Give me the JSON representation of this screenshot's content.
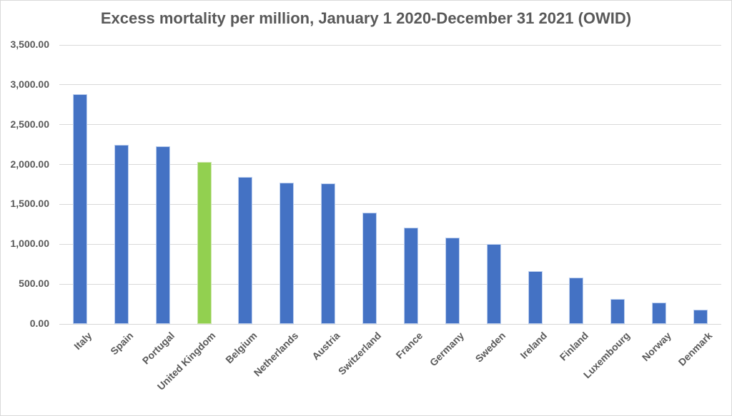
{
  "chart_data": {
    "type": "bar",
    "title": "Excess mortality per million, January 1 2020-December 31 2021 (OWID)",
    "categories": [
      "Italy",
      "Spain",
      "Portugal",
      "United Kingdom",
      "Belgium",
      "Netherlands",
      "Austria",
      "Switzerland",
      "France",
      "Germany",
      "Sweden",
      "Ireland",
      "Finland",
      "Luxembourg",
      "Norway",
      "Denmark"
    ],
    "values": [
      2880,
      2250,
      2230,
      2030,
      1840,
      1770,
      1760,
      1400,
      1210,
      1080,
      1000,
      665,
      580,
      310,
      270,
      180
    ],
    "highlight_category": "United Kingdom",
    "highlight_index": 3,
    "xlabel": "",
    "ylabel": "",
    "ylim": [
      0,
      3500
    ],
    "ytick_step": 500,
    "ytick_labels": [
      "0.00",
      "500.00",
      "1,000.00",
      "1,500.00",
      "2,000.00",
      "2,500.00",
      "3,000.00",
      "3,500.00"
    ],
    "grid": true,
    "legend": false,
    "x_tick_rotation_deg": 45,
    "colors": {
      "bar": "#4472C4",
      "bar_border": "#BDD0EF",
      "bar_highlight": "#92D050",
      "bar_highlight_border": "#CDE5AA",
      "text": "#595959",
      "gridline": "#D9D9D9",
      "axis_line": "#D6D6D6",
      "background": "#FFFFFF",
      "canvas_border": "#D9D9D9"
    }
  }
}
